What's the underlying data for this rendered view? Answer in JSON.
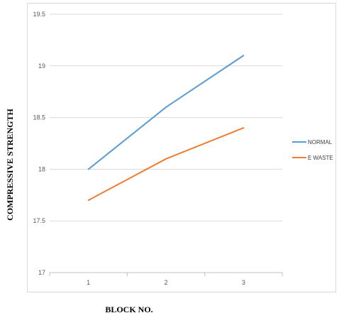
{
  "chart_data": {
    "type": "line",
    "x": [
      1,
      2,
      3
    ],
    "series": [
      {
        "name": "NORMAL",
        "values": [
          18.0,
          18.6,
          19.1
        ],
        "color": "#5b9bd5"
      },
      {
        "name": "E WASTE",
        "values": [
          17.7,
          18.1,
          18.4
        ],
        "color": "#ed7d31"
      }
    ],
    "ylim": [
      17,
      19.5
    ],
    "yticks": [
      17,
      17.5,
      18,
      18.5,
      19,
      19.5
    ],
    "ytick_labels": [
      "17",
      "17.5",
      "18",
      "18.5",
      "19",
      "19.5"
    ],
    "xtick_labels": [
      "1",
      "2",
      "3"
    ],
    "xlabel": "BLOCK NO.",
    "ylabel": "COMPRESSIVE STRENGTH",
    "grid": "horizontal",
    "legend_position": "right"
  }
}
